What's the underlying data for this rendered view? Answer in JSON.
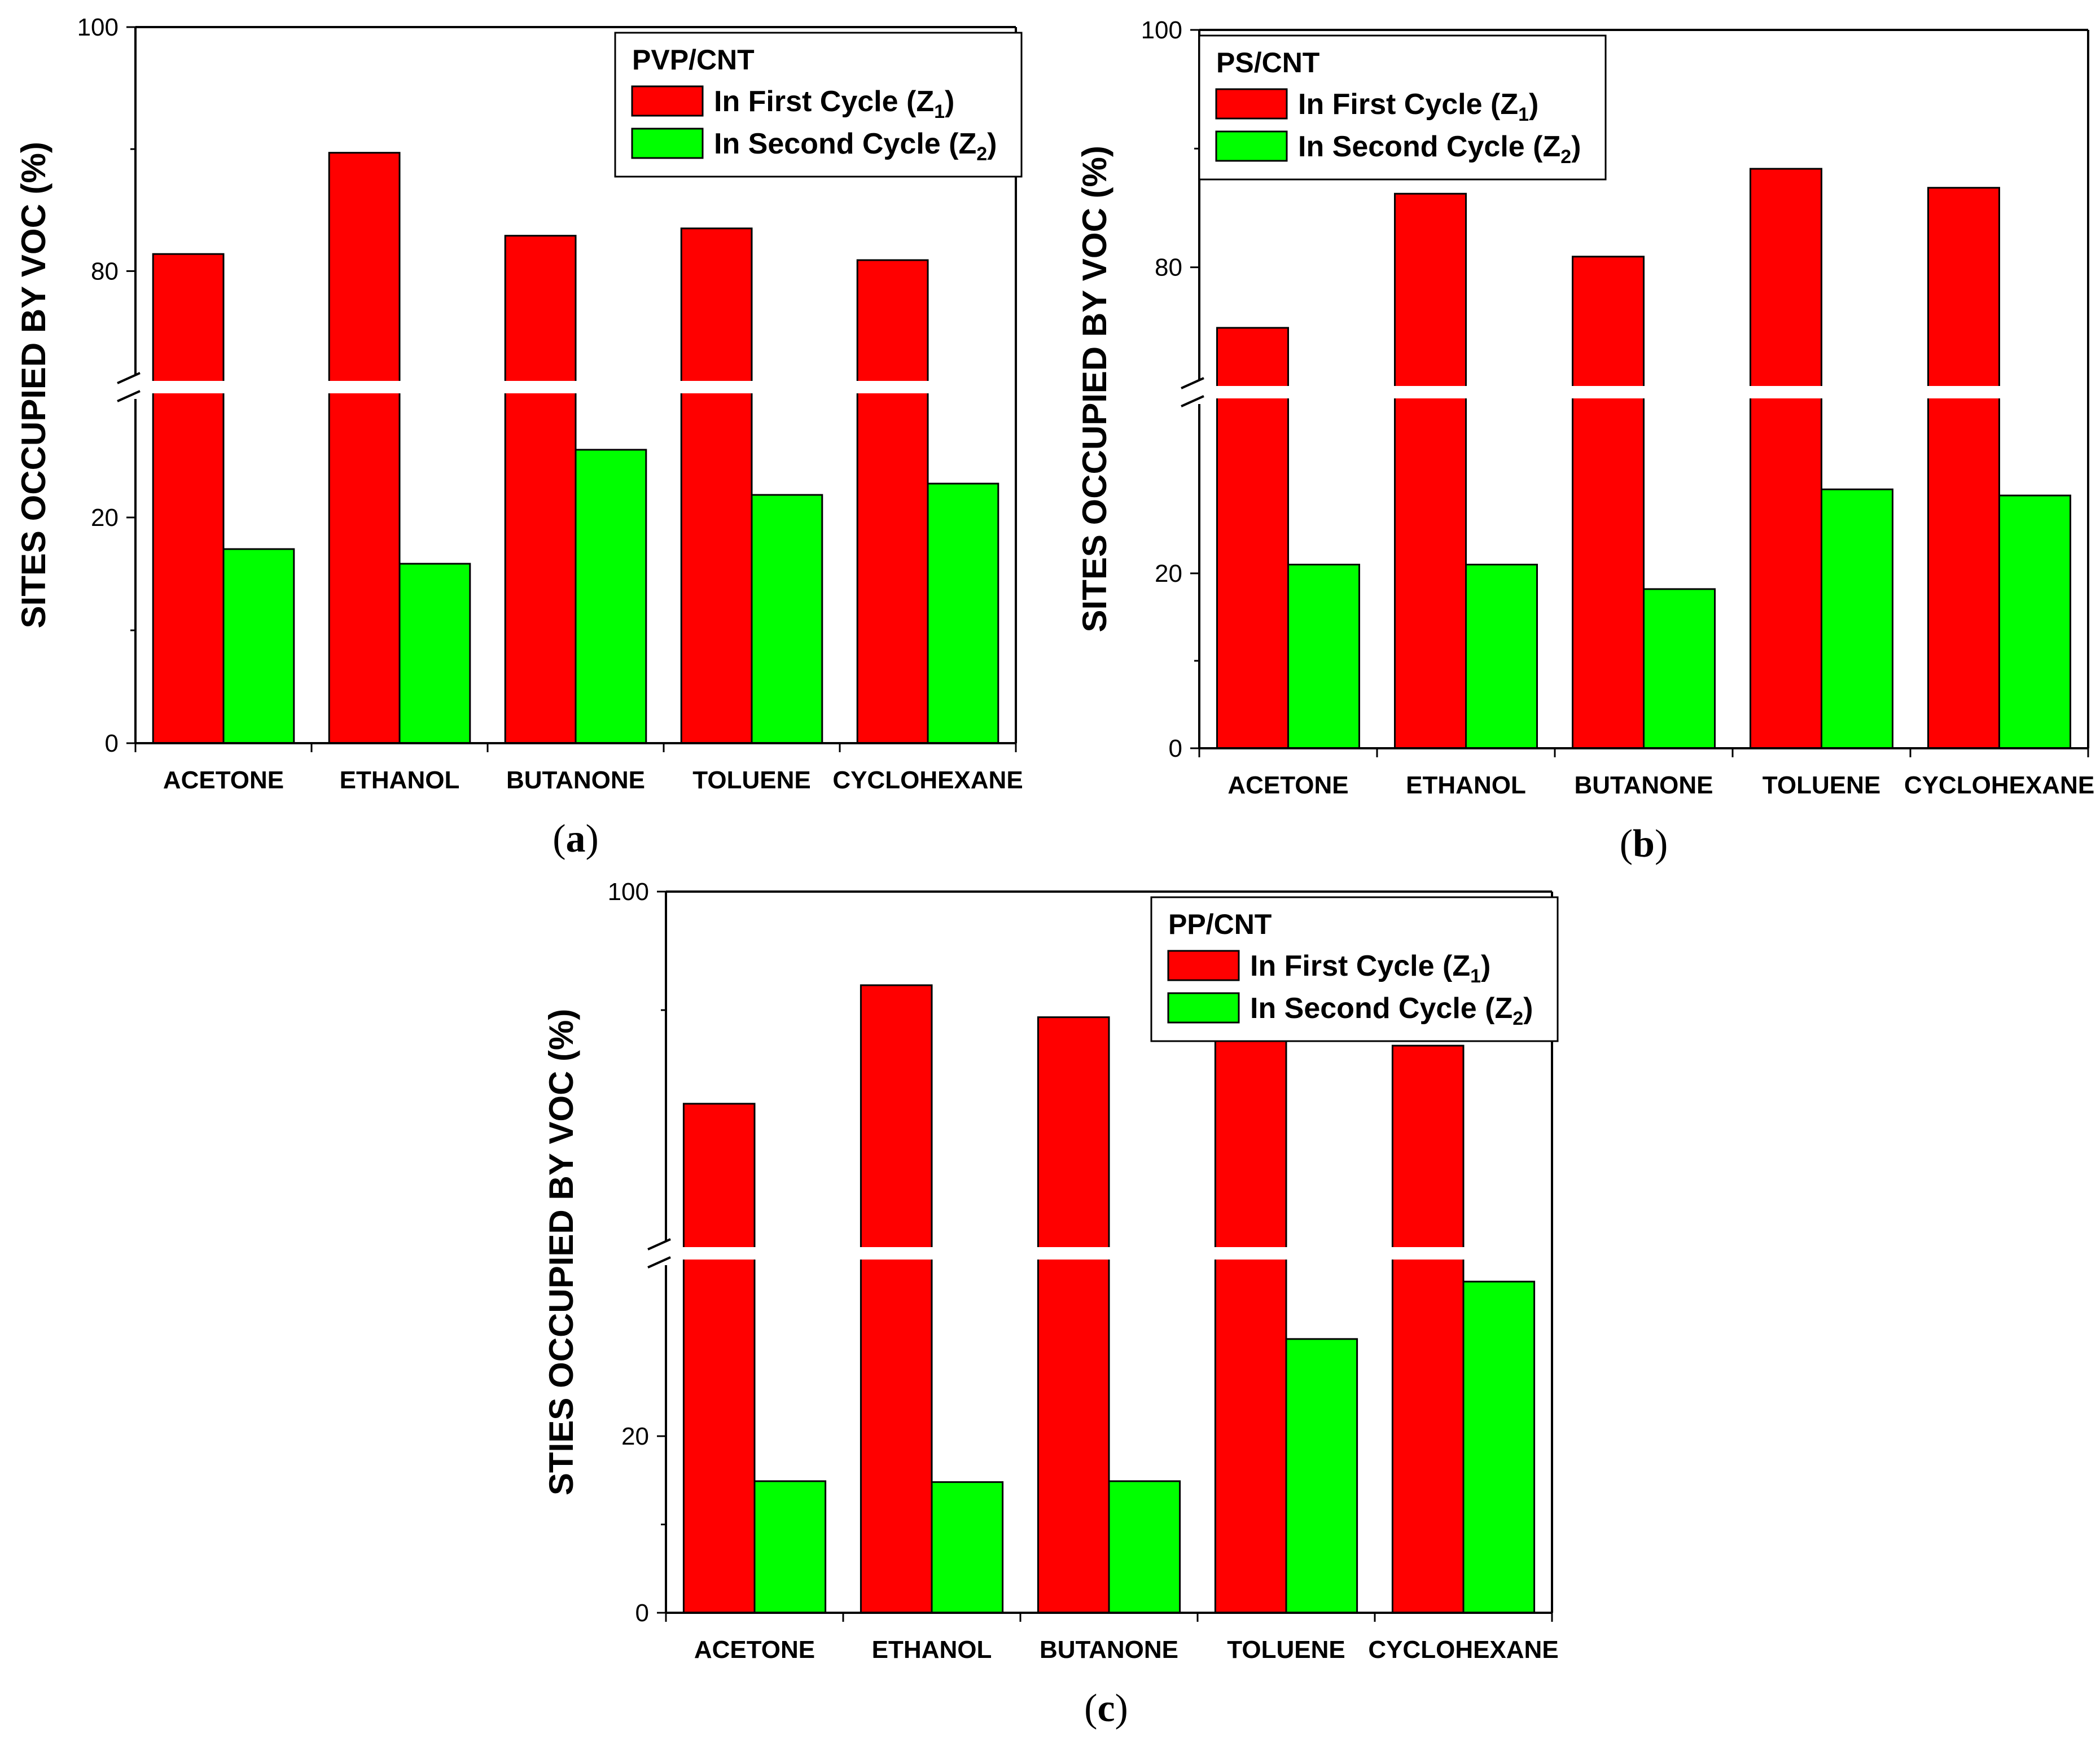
{
  "chart_data": [
    {
      "type": "bar",
      "panel_label": "a",
      "ylabel": "SITES OCCUPIED BY VOC (%)",
      "legend_title": "PVP/CNT",
      "axis_break": {
        "lower_segment": [
          0,
          31
        ],
        "upper_segment": [
          71,
          100
        ]
      },
      "ylim": [
        0,
        100
      ],
      "categories": [
        "ACETONE",
        "ETHANOL",
        "BUTANONE",
        "TOLUENE",
        "CYCLOHEXANE"
      ],
      "series": [
        {
          "name_main": "In First Cycle (Z",
          "name_sub": "1",
          "name_end": ")",
          "color": "#ff0000",
          "values": [
            81.4,
            89.7,
            82.9,
            83.5,
            80.9
          ]
        },
        {
          "name_main": "In Second Cycle (Z",
          "name_sub": "2",
          "name_end": ")",
          "color": "#00ff00",
          "values": [
            17.2,
            15.9,
            26.0,
            22.0,
            23.0
          ]
        }
      ],
      "yticks_lower": [
        0,
        20
      ],
      "yticks_upper": [
        80,
        100
      ]
    },
    {
      "type": "bar",
      "panel_label": "b",
      "ylabel": "SITES OCCUPIED BY VOC (%)",
      "legend_title": "PS/CNT",
      "axis_break": {
        "lower_segment": [
          0,
          40
        ],
        "upper_segment": [
          70,
          100
        ]
      },
      "ylim": [
        0,
        100
      ],
      "categories": [
        "ACETONE",
        "ETHANOL",
        "BUTANONE",
        "TOLUENE",
        "CYCLOHEXANE"
      ],
      "series": [
        {
          "name_main": "In First Cycle (Z",
          "name_sub": "1",
          "name_end": ")",
          "color": "#ff0000",
          "values": [
            74.9,
            86.2,
            80.9,
            88.3,
            86.7
          ]
        },
        {
          "name_main": "In Second Cycle (Z",
          "name_sub": "2",
          "name_end": ")",
          "color": "#00ff00",
          "values": [
            21.0,
            21.0,
            18.2,
            29.6,
            28.9
          ]
        }
      ],
      "yticks_lower": [
        0,
        20
      ],
      "yticks_upper": [
        80,
        100
      ]
    },
    {
      "type": "bar",
      "panel_label": "c",
      "ylabel": "STIES OCCUPIED BY VOC (%)",
      "legend_title": "PP/CNT",
      "axis_break": {
        "lower_segment": [
          0,
          40
        ],
        "upper_segment": [
          70,
          100
        ]
      },
      "ylim": [
        0,
        100
      ],
      "categories": [
        "ACETONE",
        "ETHANOL",
        "BUTANONE",
        "TOLUENE",
        "CYCLOHEXANE"
      ],
      "series": [
        {
          "name_main": "In First Cycle (Z",
          "name_sub": "1",
          "name_end": ")",
          "color": "#ff0000",
          "values": [
            82.1,
            92.1,
            89.4,
            90.1,
            87.0
          ]
        },
        {
          "name_main": "In Second Cycle (Z",
          "name_sub": "2",
          "name_end": ")",
          "color": "#00ff00",
          "values": [
            14.9,
            14.8,
            14.9,
            31.0,
            37.5
          ]
        }
      ],
      "yticks_lower": [
        0,
        20
      ],
      "yticks_upper": [
        100
      ]
    }
  ]
}
